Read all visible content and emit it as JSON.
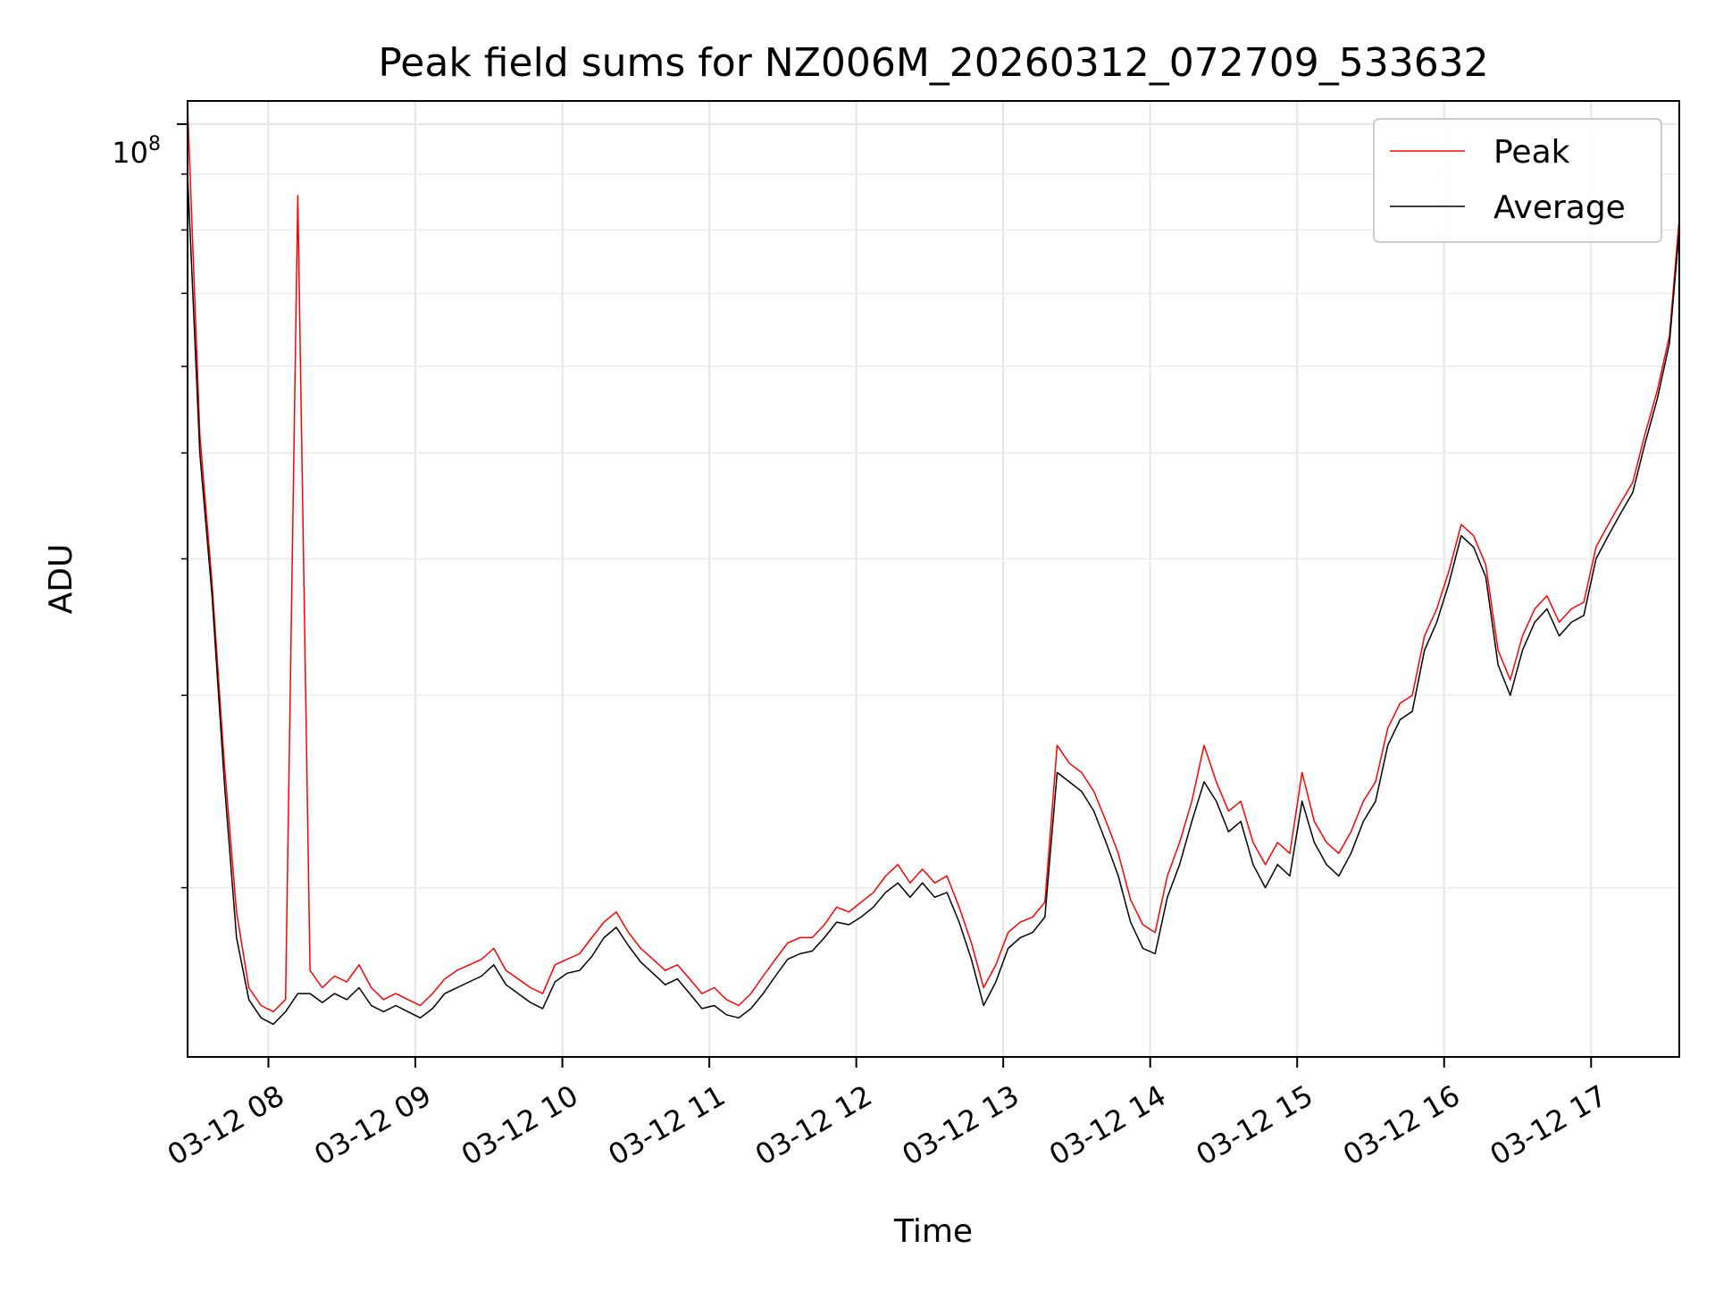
{
  "chart_data": {
    "type": "line",
    "title": "Peak field sums for NZ006M_20260312_072709_533632",
    "xlabel": "Time",
    "ylabel": "ADU",
    "y_scale": "log",
    "ylim": [
      14000000.0,
      105000000.0
    ],
    "xlim": [
      "2026-03-12 07:27",
      "2026-03-12 17:36"
    ],
    "x_ticks": [
      {
        "t": "2026-03-12 08:00",
        "label": "03-12 08"
      },
      {
        "t": "2026-03-12 09:00",
        "label": "03-12 09"
      },
      {
        "t": "2026-03-12 10:00",
        "label": "03-12 10"
      },
      {
        "t": "2026-03-12 11:00",
        "label": "03-12 11"
      },
      {
        "t": "2026-03-12 12:00",
        "label": "03-12 12"
      },
      {
        "t": "2026-03-12 13:00",
        "label": "03-12 13"
      },
      {
        "t": "2026-03-12 14:00",
        "label": "03-12 14"
      },
      {
        "t": "2026-03-12 15:00",
        "label": "03-12 15"
      },
      {
        "t": "2026-03-12 16:00",
        "label": "03-12 16"
      },
      {
        "t": "2026-03-12 17:00",
        "label": "03-12 17"
      }
    ],
    "y_major_tick": {
      "value": 100000000.0,
      "base": "10",
      "exponent": "8"
    },
    "y_minor_ticks": [
      20000000.0,
      30000000.0,
      40000000.0,
      50000000.0,
      60000000.0,
      70000000.0,
      80000000.0,
      90000000.0
    ],
    "grid": true,
    "legend_position": "top-right",
    "x": [
      "2026-03-12 07:27",
      "2026-03-12 07:32",
      "2026-03-12 07:37",
      "2026-03-12 07:42",
      "2026-03-12 07:47",
      "2026-03-12 07:52",
      "2026-03-12 07:57",
      "2026-03-12 08:02",
      "2026-03-12 08:07",
      "2026-03-12 08:12",
      "2026-03-12 08:17",
      "2026-03-12 08:22",
      "2026-03-12 08:27",
      "2026-03-12 08:32",
      "2026-03-12 08:37",
      "2026-03-12 08:42",
      "2026-03-12 08:47",
      "2026-03-12 08:52",
      "2026-03-12 08:57",
      "2026-03-12 09:02",
      "2026-03-12 09:07",
      "2026-03-12 09:12",
      "2026-03-12 09:17",
      "2026-03-12 09:22",
      "2026-03-12 09:27",
      "2026-03-12 09:32",
      "2026-03-12 09:37",
      "2026-03-12 09:42",
      "2026-03-12 09:47",
      "2026-03-12 09:52",
      "2026-03-12 09:57",
      "2026-03-12 10:02",
      "2026-03-12 10:07",
      "2026-03-12 10:12",
      "2026-03-12 10:17",
      "2026-03-12 10:22",
      "2026-03-12 10:27",
      "2026-03-12 10:32",
      "2026-03-12 10:37",
      "2026-03-12 10:42",
      "2026-03-12 10:47",
      "2026-03-12 10:52",
      "2026-03-12 10:57",
      "2026-03-12 11:02",
      "2026-03-12 11:07",
      "2026-03-12 11:12",
      "2026-03-12 11:17",
      "2026-03-12 11:22",
      "2026-03-12 11:27",
      "2026-03-12 11:32",
      "2026-03-12 11:37",
      "2026-03-12 11:42",
      "2026-03-12 11:47",
      "2026-03-12 11:52",
      "2026-03-12 11:57",
      "2026-03-12 12:02",
      "2026-03-12 12:07",
      "2026-03-12 12:12",
      "2026-03-12 12:17",
      "2026-03-12 12:22",
      "2026-03-12 12:27",
      "2026-03-12 12:32",
      "2026-03-12 12:37",
      "2026-03-12 12:42",
      "2026-03-12 12:47",
      "2026-03-12 12:52",
      "2026-03-12 12:57",
      "2026-03-12 13:02",
      "2026-03-12 13:07",
      "2026-03-12 13:12",
      "2026-03-12 13:17",
      "2026-03-12 13:22",
      "2026-03-12 13:27",
      "2026-03-12 13:32",
      "2026-03-12 13:37",
      "2026-03-12 13:42",
      "2026-03-12 13:47",
      "2026-03-12 13:52",
      "2026-03-12 13:57",
      "2026-03-12 14:02",
      "2026-03-12 14:07",
      "2026-03-12 14:12",
      "2026-03-12 14:17",
      "2026-03-12 14:22",
      "2026-03-12 14:27",
      "2026-03-12 14:32",
      "2026-03-12 14:37",
      "2026-03-12 14:42",
      "2026-03-12 14:47",
      "2026-03-12 14:52",
      "2026-03-12 14:57",
      "2026-03-12 15:02",
      "2026-03-12 15:07",
      "2026-03-12 15:12",
      "2026-03-12 15:17",
      "2026-03-12 15:22",
      "2026-03-12 15:27",
      "2026-03-12 15:32",
      "2026-03-12 15:37",
      "2026-03-12 15:42",
      "2026-03-12 15:47",
      "2026-03-12 15:52",
      "2026-03-12 15:57",
      "2026-03-12 16:02",
      "2026-03-12 16:07",
      "2026-03-12 16:12",
      "2026-03-12 16:17",
      "2026-03-12 16:22",
      "2026-03-12 16:27",
      "2026-03-12 16:32",
      "2026-03-12 16:37",
      "2026-03-12 16:42",
      "2026-03-12 16:47",
      "2026-03-12 16:52",
      "2026-03-12 16:57",
      "2026-03-12 17:02",
      "2026-03-12 17:07",
      "2026-03-12 17:12",
      "2026-03-12 17:17",
      "2026-03-12 17:22",
      "2026-03-12 17:27",
      "2026-03-12 17:32",
      "2026-03-12 17:36"
    ],
    "series": [
      {
        "name": "Peak",
        "color": "#ff0000",
        "values": [
          104000000.0,
          52000000.0,
          38000000.0,
          26000000.0,
          19000000.0,
          16200000.0,
          15600000.0,
          15400000.0,
          15800000.0,
          86000000.0,
          16800000.0,
          16200000.0,
          16600000.0,
          16400000.0,
          17000000.0,
          16200000.0,
          15800000.0,
          16000000.0,
          15800000.0,
          15600000.0,
          16000000.0,
          16500000.0,
          16800000.0,
          17000000.0,
          17200000.0,
          17600000.0,
          16800000.0,
          16500000.0,
          16200000.0,
          16000000.0,
          17000000.0,
          17200000.0,
          17400000.0,
          18000000.0,
          18600000.0,
          19000000.0,
          18200000.0,
          17600000.0,
          17200000.0,
          16800000.0,
          17000000.0,
          16500000.0,
          16000000.0,
          16200000.0,
          15800000.0,
          15600000.0,
          16000000.0,
          16600000.0,
          17200000.0,
          17800000.0,
          18000000.0,
          18000000.0,
          18500000.0,
          19200000.0,
          19000000.0,
          19400000.0,
          19800000.0,
          20500000.0,
          21000000.0,
          20200000.0,
          20800000.0,
          20200000.0,
          20500000.0,
          19200000.0,
          17800000.0,
          16200000.0,
          17000000.0,
          18200000.0,
          18600000.0,
          18800000.0,
          19400000.0,
          27000000.0,
          26000000.0,
          25500000.0,
          24500000.0,
          23000000.0,
          21500000.0,
          19500000.0,
          18500000.0,
          18200000.0,
          20500000.0,
          22000000.0,
          24000000.0,
          27000000.0,
          25000000.0,
          23500000.0,
          24000000.0,
          22000000.0,
          21000000.0,
          22000000.0,
          21500000.0,
          25500000.0,
          23000000.0,
          22000000.0,
          21500000.0,
          22500000.0,
          24000000.0,
          25000000.0,
          28000000.0,
          29500000.0,
          30000000.0,
          34000000.0,
          36000000.0,
          39000000.0,
          43000000.0,
          42000000.0,
          39500000.0,
          33000000.0,
          31000000.0,
          34000000.0,
          36000000.0,
          37000000.0,
          35000000.0,
          36000000.0,
          36500000.0,
          41000000.0,
          43000000.0,
          45000000.0,
          47000000.0,
          52000000.0,
          57000000.0,
          64000000.0,
          82000000.0
        ]
      },
      {
        "name": "Average",
        "color": "#000000",
        "values": [
          90000000.0,
          50000000.0,
          37000000.0,
          25000000.0,
          18000000.0,
          15800000.0,
          15200000.0,
          15000000.0,
          15400000.0,
          16000000.0,
          16000000.0,
          15700000.0,
          16000000.0,
          15800000.0,
          16200000.0,
          15600000.0,
          15400000.0,
          15600000.0,
          15400000.0,
          15200000.0,
          15500000.0,
          16000000.0,
          16200000.0,
          16400000.0,
          16600000.0,
          17000000.0,
          16300000.0,
          16000000.0,
          15700000.0,
          15500000.0,
          16400000.0,
          16700000.0,
          16800000.0,
          17300000.0,
          18000000.0,
          18400000.0,
          17700000.0,
          17100000.0,
          16700000.0,
          16300000.0,
          16500000.0,
          16000000.0,
          15500000.0,
          15600000.0,
          15300000.0,
          15200000.0,
          15500000.0,
          16000000.0,
          16600000.0,
          17200000.0,
          17400000.0,
          17500000.0,
          18000000.0,
          18600000.0,
          18500000.0,
          18800000.0,
          19200000.0,
          19800000.0,
          20200000.0,
          19600000.0,
          20200000.0,
          19600000.0,
          19800000.0,
          18600000.0,
          17200000.0,
          15600000.0,
          16400000.0,
          17600000.0,
          18000000.0,
          18200000.0,
          18800000.0,
          25500000.0,
          25000000.0,
          24500000.0,
          23500000.0,
          22000000.0,
          20500000.0,
          18600000.0,
          17600000.0,
          17400000.0,
          19600000.0,
          21000000.0,
          23000000.0,
          25000000.0,
          24000000.0,
          22500000.0,
          23000000.0,
          21000000.0,
          20000000.0,
          21000000.0,
          20500000.0,
          24000000.0,
          22000000.0,
          21000000.0,
          20500000.0,
          21500000.0,
          23000000.0,
          24000000.0,
          27000000.0,
          28500000.0,
          29000000.0,
          33000000.0,
          35000000.0,
          38000000.0,
          42000000.0,
          41000000.0,
          38500000.0,
          32000000.0,
          30000000.0,
          33000000.0,
          35000000.0,
          36000000.0,
          34000000.0,
          35000000.0,
          35500000.0,
          40000000.0,
          42000000.0,
          44000000.0,
          46000000.0,
          51000000.0,
          56000000.0,
          63000000.0,
          80000000.0
        ]
      }
    ]
  }
}
